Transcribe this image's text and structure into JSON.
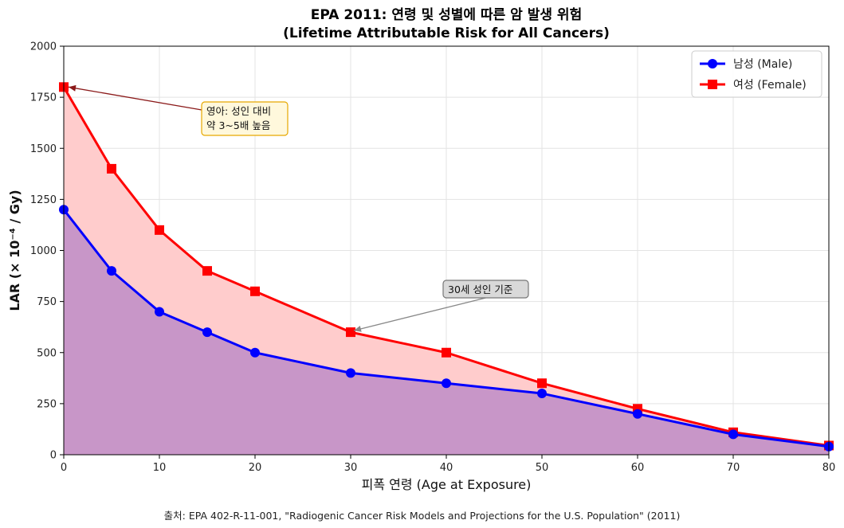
{
  "chart_data": {
    "type": "area",
    "title": "EPA 2011: 연령 및 성별에 따른 암 발생 위험",
    "subtitle": "(Lifetime Attributable Risk for All Cancers)",
    "xlabel": "피폭 연령 (Age at Exposure)",
    "ylabel": "LAR (× 10⁻⁴ / Gy)",
    "xlim": [
      0,
      80
    ],
    "ylim": [
      0,
      2000
    ],
    "x_ticks": [
      0,
      10,
      20,
      30,
      40,
      50,
      60,
      70,
      80
    ],
    "y_ticks": [
      0,
      250,
      500,
      750,
      1000,
      1250,
      1500,
      1750,
      2000
    ],
    "grid": true,
    "legend_position": "top-right",
    "x": [
      0,
      5,
      10,
      15,
      20,
      30,
      40,
      50,
      60,
      70,
      80
    ],
    "series": [
      {
        "name": "남성 (Male)",
        "color": "#0000ff",
        "marker": "circle",
        "fill_color": "#c896c8",
        "values": [
          1200,
          900,
          700,
          600,
          500,
          400,
          350,
          300,
          200,
          100,
          40
        ]
      },
      {
        "name": "여성 (Female)",
        "color": "#ff0000",
        "marker": "square",
        "fill_color": "#ffcccc",
        "values": [
          1800,
          1400,
          1100,
          900,
          800,
          600,
          500,
          350,
          225,
          110,
          45
        ]
      }
    ],
    "annotations": [
      {
        "text_lines": [
          "영아: 성인 대비",
          "약 3~5배 높음"
        ],
        "target_x": 0,
        "target_y": 1800,
        "box_fill": "#fff8dc",
        "box_stroke": "#e6a800",
        "arrow_color": "#8b1a1a"
      },
      {
        "text_lines": [
          "30세 성인 기준"
        ],
        "target_x": 30,
        "target_y": 600,
        "box_fill": "#d9d9d9",
        "box_stroke": "#777777",
        "arrow_color": "#888888"
      }
    ]
  },
  "source_note": "출처: EPA 402-R-11-001, \"Radiogenic Cancer Risk Models and Projections for the U.S. Population\" (2011)"
}
